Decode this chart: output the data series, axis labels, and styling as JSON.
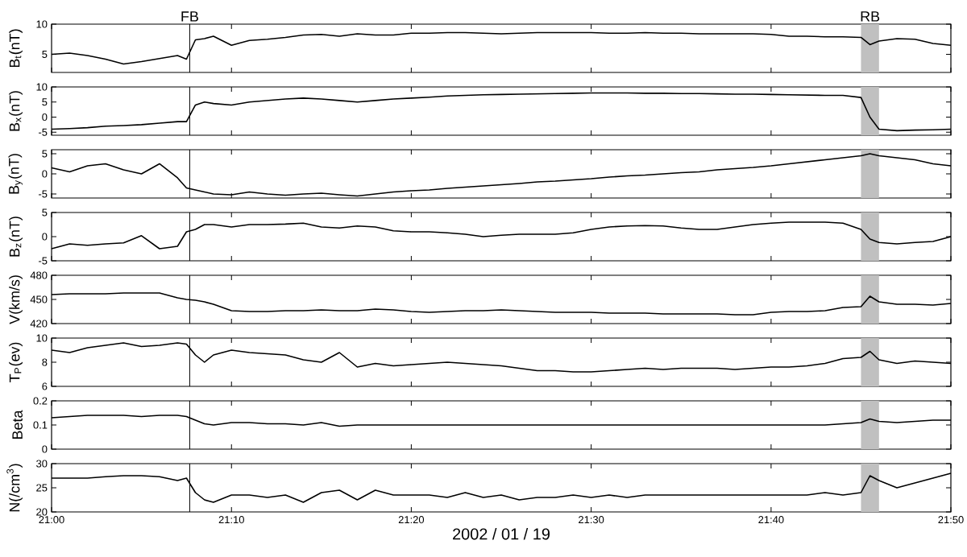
{
  "chart_data": [
    {
      "type": "line",
      "ylabel": "B$_{t}$(nT)",
      "xlim": [
        21.0,
        21.8333
      ],
      "ylim": [
        2,
        10
      ],
      "yticks": [
        5,
        10
      ],
      "tick_labels": "y",
      "xticks": [
        {
          "value": 21.0,
          "label": null
        },
        {
          "value": 21.1667,
          "label": null
        },
        {
          "value": 21.3333,
          "label": null
        },
        {
          "value": 21.5,
          "label": null
        },
        {
          "value": 21.6667,
          "label": null
        },
        {
          "value": 21.8333,
          "label": null
        }
      ],
      "x": [
        21.0,
        21.0167,
        21.0333,
        21.05,
        21.0667,
        21.0833,
        21.1,
        21.1167,
        21.125,
        21.1333,
        21.1417,
        21.15,
        21.1667,
        21.1833,
        21.2,
        21.2167,
        21.2333,
        21.25,
        21.2667,
        21.2833,
        21.3,
        21.3167,
        21.3333,
        21.35,
        21.3667,
        21.3833,
        21.4,
        21.4167,
        21.4333,
        21.45,
        21.4667,
        21.4833,
        21.5,
        21.5167,
        21.5333,
        21.55,
        21.5667,
        21.5833,
        21.6,
        21.6167,
        21.6333,
        21.65,
        21.6667,
        21.6833,
        21.7,
        21.7167,
        21.7333,
        21.75,
        21.7583,
        21.7667,
        21.7833,
        21.8,
        21.8167,
        21.8333
      ],
      "series": [
        {
          "color": "#000000",
          "values": [
            5.0,
            5.2,
            4.8,
            4.2,
            3.4,
            3.8,
            4.3,
            4.8,
            4.2,
            7.4,
            7.6,
            8.0,
            6.5,
            7.3,
            7.5,
            7.8,
            8.2,
            8.3,
            8.0,
            8.4,
            8.2,
            8.2,
            8.5,
            8.5,
            8.6,
            8.6,
            8.5,
            8.4,
            8.5,
            8.6,
            8.6,
            8.6,
            8.6,
            8.5,
            8.5,
            8.6,
            8.5,
            8.5,
            8.4,
            8.4,
            8.4,
            8.4,
            8.3,
            8.0,
            8.0,
            7.9,
            7.9,
            7.8,
            6.6,
            7.2,
            7.6,
            7.5,
            6.8,
            6.5
          ]
        }
      ],
      "ref_lines": [
        {
          "axis": "x",
          "value": 21.128,
          "label": "FB",
          "color": "#000000"
        }
      ],
      "bands": [
        {
          "axis": "x",
          "from": 21.75,
          "to": 21.7667,
          "label": "RB",
          "color": "#c0c0c0"
        }
      ]
    },
    {
      "type": "line",
      "ylabel": "B$_{x}$(nT)",
      "xlim": [
        21.0,
        21.8333
      ],
      "ylim": [
        -6,
        10
      ],
      "yticks": [
        -5,
        0,
        5,
        10
      ],
      "tick_labels": "y",
      "xticks": [
        {
          "value": 21.0,
          "label": null
        },
        {
          "value": 21.1667,
          "label": null
        },
        {
          "value": 21.3333,
          "label": null
        },
        {
          "value": 21.5,
          "label": null
        },
        {
          "value": 21.6667,
          "label": null
        },
        {
          "value": 21.8333,
          "label": null
        }
      ],
      "x": [
        21.0,
        21.0167,
        21.0333,
        21.05,
        21.0667,
        21.0833,
        21.1,
        21.1167,
        21.125,
        21.1333,
        21.1417,
        21.15,
        21.1667,
        21.1833,
        21.2,
        21.2167,
        21.2333,
        21.25,
        21.2667,
        21.2833,
        21.3,
        21.3167,
        21.3333,
        21.35,
        21.3667,
        21.3833,
        21.4,
        21.4167,
        21.4333,
        21.45,
        21.4667,
        21.4833,
        21.5,
        21.5167,
        21.5333,
        21.55,
        21.5667,
        21.5833,
        21.6,
        21.6167,
        21.6333,
        21.65,
        21.6667,
        21.6833,
        21.7,
        21.7167,
        21.7333,
        21.75,
        21.7583,
        21.7667,
        21.7833,
        21.8,
        21.8167,
        21.8333
      ],
      "series": [
        {
          "color": "#000000",
          "values": [
            -4.0,
            -3.8,
            -3.5,
            -3.0,
            -2.8,
            -2.5,
            -2.0,
            -1.5,
            -1.5,
            4.0,
            5.0,
            4.5,
            4.0,
            5.0,
            5.5,
            6.0,
            6.3,
            6.0,
            5.5,
            5.0,
            5.5,
            6.0,
            6.3,
            6.6,
            7.0,
            7.2,
            7.4,
            7.5,
            7.6,
            7.7,
            7.8,
            7.9,
            8.0,
            8.0,
            8.0,
            7.9,
            7.9,
            7.8,
            7.8,
            7.7,
            7.6,
            7.6,
            7.5,
            7.4,
            7.3,
            7.2,
            7.2,
            6.5,
            0.0,
            -4.0,
            -4.5,
            -4.3,
            -4.2,
            -4.0
          ]
        }
      ],
      "ref_lines": [
        {
          "axis": "x",
          "value": 21.128,
          "color": "#000000"
        }
      ],
      "bands": [
        {
          "axis": "x",
          "from": 21.75,
          "to": 21.7667,
          "color": "#c0c0c0"
        }
      ]
    },
    {
      "type": "line",
      "ylabel": "B$_{y}$(nT)",
      "xlim": [
        21.0,
        21.8333
      ],
      "ylim": [
        -6,
        6
      ],
      "yticks": [
        -5,
        0,
        5
      ],
      "tick_labels": "y",
      "xticks": [
        {
          "value": 21.0,
          "label": null
        },
        {
          "value": 21.1667,
          "label": null
        },
        {
          "value": 21.3333,
          "label": null
        },
        {
          "value": 21.5,
          "label": null
        },
        {
          "value": 21.6667,
          "label": null
        },
        {
          "value": 21.8333,
          "label": null
        }
      ],
      "x": [
        21.0,
        21.0167,
        21.0333,
        21.05,
        21.0667,
        21.0833,
        21.1,
        21.1167,
        21.125,
        21.1333,
        21.1417,
        21.15,
        21.1667,
        21.1833,
        21.2,
        21.2167,
        21.2333,
        21.25,
        21.2667,
        21.2833,
        21.3,
        21.3167,
        21.3333,
        21.35,
        21.3667,
        21.3833,
        21.4,
        21.4167,
        21.4333,
        21.45,
        21.4667,
        21.4833,
        21.5,
        21.5167,
        21.5333,
        21.55,
        21.5667,
        21.5833,
        21.6,
        21.6167,
        21.6333,
        21.65,
        21.6667,
        21.6833,
        21.7,
        21.7167,
        21.7333,
        21.75,
        21.7583,
        21.7667,
        21.7833,
        21.8,
        21.8167,
        21.8333
      ],
      "series": [
        {
          "color": "#000000",
          "values": [
            1.5,
            0.5,
            2.0,
            2.5,
            1.0,
            0.0,
            2.5,
            -1.0,
            -3.5,
            -4.0,
            -4.5,
            -5.0,
            -5.2,
            -4.5,
            -5.0,
            -5.3,
            -5.0,
            -4.8,
            -5.2,
            -5.5,
            -5.0,
            -4.5,
            -4.2,
            -4.0,
            -3.6,
            -3.3,
            -3.0,
            -2.7,
            -2.4,
            -2.0,
            -1.8,
            -1.5,
            -1.2,
            -0.8,
            -0.5,
            -0.3,
            0.0,
            0.3,
            0.5,
            1.0,
            1.3,
            1.6,
            2.0,
            2.5,
            3.0,
            3.5,
            4.0,
            4.5,
            5.0,
            4.5,
            4.0,
            3.5,
            2.5,
            2.0
          ]
        }
      ],
      "ref_lines": [
        {
          "axis": "x",
          "value": 21.128,
          "color": "#000000"
        }
      ],
      "bands": [
        {
          "axis": "x",
          "from": 21.75,
          "to": 21.7667,
          "color": "#c0c0c0"
        }
      ]
    },
    {
      "type": "line",
      "ylabel": "B$_{z}$(nT)",
      "xlim": [
        21.0,
        21.8333
      ],
      "ylim": [
        -5,
        5
      ],
      "yticks": [
        -5,
        0,
        5
      ],
      "tick_labels": "y",
      "xticks": [
        {
          "value": 21.0,
          "label": null
        },
        {
          "value": 21.1667,
          "label": null
        },
        {
          "value": 21.3333,
          "label": null
        },
        {
          "value": 21.5,
          "label": null
        },
        {
          "value": 21.6667,
          "label": null
        },
        {
          "value": 21.8333,
          "label": null
        }
      ],
      "x": [
        21.0,
        21.0167,
        21.0333,
        21.05,
        21.0667,
        21.0833,
        21.1,
        21.1167,
        21.125,
        21.1333,
        21.1417,
        21.15,
        21.1667,
        21.1833,
        21.2,
        21.2167,
        21.2333,
        21.25,
        21.2667,
        21.2833,
        21.3,
        21.3167,
        21.3333,
        21.35,
        21.3667,
        21.3833,
        21.4,
        21.4167,
        21.4333,
        21.45,
        21.4667,
        21.4833,
        21.5,
        21.5167,
        21.5333,
        21.55,
        21.5667,
        21.5833,
        21.6,
        21.6167,
        21.6333,
        21.65,
        21.6667,
        21.6833,
        21.7,
        21.7167,
        21.7333,
        21.75,
        21.7583,
        21.7667,
        21.7833,
        21.8,
        21.8167,
        21.8333
      ],
      "series": [
        {
          "color": "#000000",
          "values": [
            -2.5,
            -1.5,
            -1.8,
            -1.5,
            -1.3,
            0.2,
            -2.5,
            -2.0,
            1.0,
            1.5,
            2.5,
            2.5,
            2.0,
            2.5,
            2.5,
            2.6,
            2.8,
            2.0,
            1.8,
            2.2,
            2.0,
            1.2,
            1.0,
            1.0,
            0.8,
            0.5,
            0.0,
            0.3,
            0.5,
            0.5,
            0.5,
            0.8,
            1.5,
            2.0,
            2.2,
            2.3,
            2.2,
            1.8,
            1.5,
            1.5,
            2.0,
            2.5,
            2.8,
            3.0,
            3.0,
            3.0,
            2.8,
            1.5,
            -0.5,
            -1.2,
            -1.5,
            -1.2,
            -1.0,
            0.0
          ]
        }
      ],
      "ref_lines": [
        {
          "axis": "x",
          "value": 21.128,
          "color": "#000000"
        }
      ],
      "bands": [
        {
          "axis": "x",
          "from": 21.75,
          "to": 21.7667,
          "color": "#c0c0c0"
        }
      ]
    },
    {
      "type": "line",
      "ylabel": "V(km/s)",
      "xlim": [
        21.0,
        21.8333
      ],
      "ylim": [
        420,
        480
      ],
      "yticks": [
        420,
        450,
        480
      ],
      "tick_labels": "y",
      "xticks": [
        {
          "value": 21.0,
          "label": null
        },
        {
          "value": 21.1667,
          "label": null
        },
        {
          "value": 21.3333,
          "label": null
        },
        {
          "value": 21.5,
          "label": null
        },
        {
          "value": 21.6667,
          "label": null
        },
        {
          "value": 21.8333,
          "label": null
        }
      ],
      "x": [
        21.0,
        21.0167,
        21.0333,
        21.05,
        21.0667,
        21.0833,
        21.1,
        21.1167,
        21.125,
        21.1333,
        21.1417,
        21.15,
        21.1667,
        21.1833,
        21.2,
        21.2167,
        21.2333,
        21.25,
        21.2667,
        21.2833,
        21.3,
        21.3167,
        21.3333,
        21.35,
        21.3667,
        21.3833,
        21.4,
        21.4167,
        21.4333,
        21.45,
        21.4667,
        21.4833,
        21.5,
        21.5167,
        21.5333,
        21.55,
        21.5667,
        21.5833,
        21.6,
        21.6167,
        21.6333,
        21.65,
        21.6667,
        21.6833,
        21.7,
        21.7167,
        21.7333,
        21.75,
        21.7583,
        21.7667,
        21.7833,
        21.8,
        21.8167,
        21.8333
      ],
      "series": [
        {
          "color": "#000000",
          "values": [
            456,
            457,
            457,
            457,
            458,
            458,
            458,
            452,
            450,
            449,
            447,
            444,
            436,
            435,
            435,
            436,
            436,
            437,
            436,
            436,
            438,
            437,
            435,
            434,
            435,
            436,
            436,
            437,
            436,
            435,
            434,
            434,
            434,
            433,
            433,
            433,
            432,
            432,
            432,
            432,
            431,
            431,
            434,
            435,
            435,
            436,
            440,
            441,
            454,
            447,
            444,
            444,
            443,
            445
          ]
        }
      ],
      "ref_lines": [
        {
          "axis": "x",
          "value": 21.128,
          "color": "#000000"
        }
      ],
      "bands": [
        {
          "axis": "x",
          "from": 21.75,
          "to": 21.7667,
          "color": "#c0c0c0"
        }
      ]
    },
    {
      "type": "line",
      "ylabel": "T$_{P}$(ev)",
      "xlim": [
        21.0,
        21.8333
      ],
      "ylim": [
        6,
        10
      ],
      "yticks": [
        6,
        8,
        10
      ],
      "tick_labels": "y",
      "xticks": [
        {
          "value": 21.0,
          "label": null
        },
        {
          "value": 21.1667,
          "label": null
        },
        {
          "value": 21.3333,
          "label": null
        },
        {
          "value": 21.5,
          "label": null
        },
        {
          "value": 21.6667,
          "label": null
        },
        {
          "value": 21.8333,
          "label": null
        }
      ],
      "x": [
        21.0,
        21.0167,
        21.0333,
        21.05,
        21.0667,
        21.0833,
        21.1,
        21.1167,
        21.125,
        21.1333,
        21.1417,
        21.15,
        21.1667,
        21.1833,
        21.2,
        21.2167,
        21.2333,
        21.25,
        21.2667,
        21.2833,
        21.3,
        21.3167,
        21.3333,
        21.35,
        21.3667,
        21.3833,
        21.4,
        21.4167,
        21.4333,
        21.45,
        21.4667,
        21.4833,
        21.5,
        21.5167,
        21.5333,
        21.55,
        21.5667,
        21.5833,
        21.6,
        21.6167,
        21.6333,
        21.65,
        21.6667,
        21.6833,
        21.7,
        21.7167,
        21.7333,
        21.75,
        21.7583,
        21.7667,
        21.7833,
        21.8,
        21.8167,
        21.8333
      ],
      "series": [
        {
          "color": "#000000",
          "values": [
            9.0,
            8.8,
            9.2,
            9.4,
            9.6,
            9.3,
            9.4,
            9.6,
            9.5,
            8.6,
            8.0,
            8.6,
            9.0,
            8.8,
            8.7,
            8.6,
            8.2,
            8.0,
            8.8,
            7.6,
            7.9,
            7.7,
            7.8,
            7.9,
            8.0,
            7.9,
            7.8,
            7.7,
            7.5,
            7.3,
            7.3,
            7.2,
            7.2,
            7.3,
            7.4,
            7.5,
            7.4,
            7.5,
            7.5,
            7.5,
            7.4,
            7.5,
            7.6,
            7.6,
            7.7,
            7.9,
            8.3,
            8.4,
            8.9,
            8.2,
            7.9,
            8.1,
            8.0,
            7.9
          ]
        }
      ],
      "ref_lines": [
        {
          "axis": "x",
          "value": 21.128,
          "color": "#000000"
        }
      ],
      "bands": [
        {
          "axis": "x",
          "from": 21.75,
          "to": 21.7667,
          "color": "#c0c0c0"
        }
      ]
    },
    {
      "type": "line",
      "ylabel": "Beta",
      "xlim": [
        21.0,
        21.8333
      ],
      "ylim": [
        0,
        0.2
      ],
      "yticks": [
        0,
        0.1,
        0.2
      ],
      "tick_labels": "y",
      "xticks": [
        {
          "value": 21.0,
          "label": null
        },
        {
          "value": 21.1667,
          "label": null
        },
        {
          "value": 21.3333,
          "label": null
        },
        {
          "value": 21.5,
          "label": null
        },
        {
          "value": 21.6667,
          "label": null
        },
        {
          "value": 21.8333,
          "label": null
        }
      ],
      "x": [
        21.0,
        21.0167,
        21.0333,
        21.05,
        21.0667,
        21.0833,
        21.1,
        21.1167,
        21.125,
        21.1333,
        21.1417,
        21.15,
        21.1667,
        21.1833,
        21.2,
        21.2167,
        21.2333,
        21.25,
        21.2667,
        21.2833,
        21.3,
        21.3167,
        21.3333,
        21.35,
        21.3667,
        21.3833,
        21.4,
        21.4167,
        21.4333,
        21.45,
        21.4667,
        21.4833,
        21.5,
        21.5167,
        21.5333,
        21.55,
        21.5667,
        21.5833,
        21.6,
        21.6167,
        21.6333,
        21.65,
        21.6667,
        21.6833,
        21.7,
        21.7167,
        21.7333,
        21.75,
        21.7583,
        21.7667,
        21.7833,
        21.8,
        21.8167,
        21.8333
      ],
      "series": [
        {
          "color": "#000000",
          "values": [
            0.13,
            0.135,
            0.14,
            0.14,
            0.14,
            0.135,
            0.14,
            0.14,
            0.135,
            0.12,
            0.105,
            0.1,
            0.11,
            0.11,
            0.105,
            0.105,
            0.1,
            0.11,
            0.095,
            0.1,
            0.1,
            0.1,
            0.1,
            0.1,
            0.1,
            0.1,
            0.1,
            0.1,
            0.1,
            0.1,
            0.1,
            0.1,
            0.1,
            0.1,
            0.1,
            0.1,
            0.1,
            0.1,
            0.1,
            0.1,
            0.1,
            0.1,
            0.1,
            0.1,
            0.1,
            0.1,
            0.105,
            0.11,
            0.125,
            0.115,
            0.11,
            0.115,
            0.12,
            0.12
          ]
        }
      ],
      "ref_lines": [
        {
          "axis": "x",
          "value": 21.128,
          "color": "#000000"
        }
      ],
      "bands": [
        {
          "axis": "x",
          "from": 21.75,
          "to": 21.7667,
          "color": "#c0c0c0"
        }
      ]
    },
    {
      "type": "line",
      "ylabel": "N(/cm$^{3}$)",
      "xlabel": "2002 / 01 / 19",
      "xlim": [
        21.0,
        21.8333
      ],
      "ylim": [
        20,
        30
      ],
      "yticks": [
        20,
        25,
        30
      ],
      "xticks": [
        {
          "value": 21.0,
          "label": "21:00"
        },
        {
          "value": 21.1667,
          "label": "21:10"
        },
        {
          "value": 21.3333,
          "label": "21:20"
        },
        {
          "value": 21.5,
          "label": "21:30"
        },
        {
          "value": 21.6667,
          "label": "21:40"
        },
        {
          "value": 21.8333,
          "label": "21:50"
        }
      ],
      "x": [
        21.0,
        21.0167,
        21.0333,
        21.05,
        21.0667,
        21.0833,
        21.1,
        21.1167,
        21.125,
        21.1333,
        21.1417,
        21.15,
        21.1667,
        21.1833,
        21.2,
        21.2167,
        21.2333,
        21.25,
        21.2667,
        21.2833,
        21.3,
        21.3167,
        21.3333,
        21.35,
        21.3667,
        21.3833,
        21.4,
        21.4167,
        21.4333,
        21.45,
        21.4667,
        21.4833,
        21.5,
        21.5167,
        21.5333,
        21.55,
        21.5667,
        21.5833,
        21.6,
        21.6167,
        21.6333,
        21.65,
        21.6667,
        21.6833,
        21.7,
        21.7167,
        21.7333,
        21.75,
        21.7583,
        21.7667,
        21.7833,
        21.8,
        21.8167,
        21.8333
      ],
      "series": [
        {
          "color": "#000000",
          "values": [
            27,
            27,
            27,
            27.3,
            27.5,
            27.5,
            27.3,
            26.5,
            27,
            24,
            22.5,
            22,
            23.5,
            23.5,
            23,
            23.5,
            22,
            24,
            24.5,
            22.5,
            24.5,
            23.5,
            23.5,
            23.5,
            23,
            24,
            23,
            23.5,
            22.5,
            23,
            23,
            23.5,
            23,
            23.5,
            23,
            23.5,
            23.5,
            23.5,
            23.5,
            23.5,
            23.5,
            23.5,
            23.5,
            23.5,
            23.5,
            24,
            23.5,
            24,
            27.5,
            26.5,
            25,
            26,
            27,
            28
          ]
        }
      ],
      "ref_lines": [
        {
          "axis": "x",
          "value": 21.128,
          "color": "#000000"
        }
      ],
      "bands": [
        {
          "axis": "x",
          "from": 21.75,
          "to": 21.7667,
          "color": "#c0c0c0"
        }
      ]
    }
  ]
}
